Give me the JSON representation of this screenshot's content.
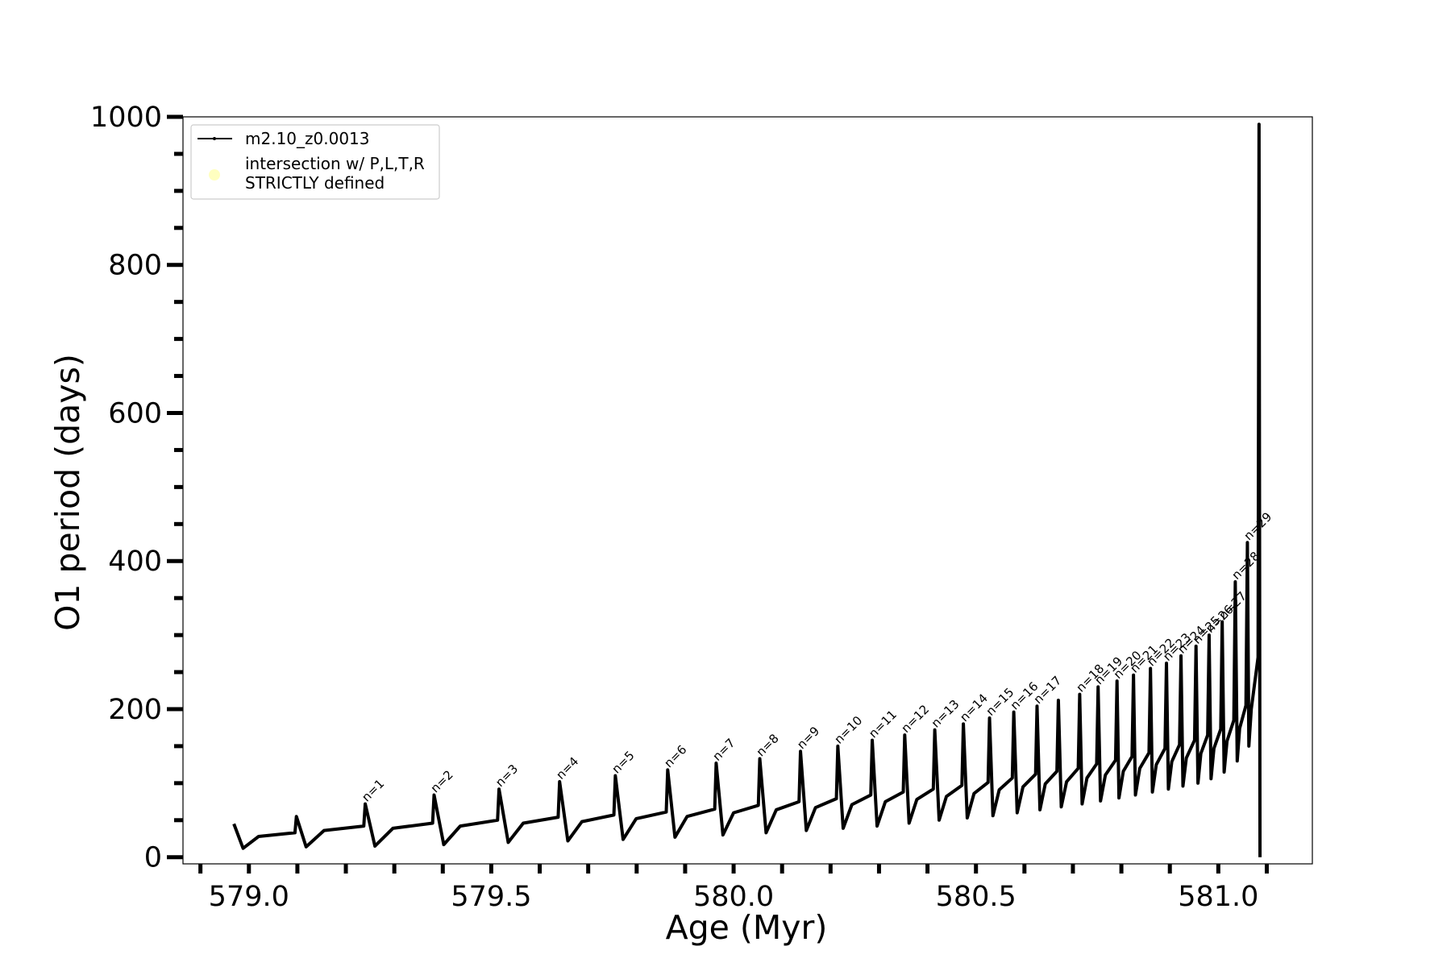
{
  "chart_data": {
    "type": "line",
    "xlabel": "Age (Myr)",
    "ylabel": "O1 period (days)",
    "xlim": [
      578.864,
      581.194
    ],
    "ylim": [
      -9,
      1000
    ],
    "xticks": [
      {
        "value": 579,
        "label": "579.0"
      },
      {
        "value": 579.5,
        "label": "579.5"
      },
      {
        "value": 580,
        "label": "580.0"
      },
      {
        "value": 580.5,
        "label": "580.5"
      },
      {
        "value": 581,
        "label": "581.0"
      }
    ],
    "yticks": [
      0,
      200,
      400,
      600,
      800,
      1000
    ],
    "xminorticks": [
      578.9,
      579.1,
      579.2,
      579.3,
      579.4,
      579.6,
      579.7,
      579.8,
      579.9,
      580.1,
      580.2,
      580.3,
      580.4,
      580.6,
      580.7,
      580.8,
      580.9,
      581.1
    ],
    "yminorticks": [
      50,
      100,
      150,
      250,
      300,
      350,
      450,
      500,
      550,
      650,
      700,
      750,
      850,
      900,
      950
    ],
    "legend": "upper left",
    "series": [
      {
        "name": "m2.10_z0.0013",
        "color": "#000000",
        "x": [
          578.969,
          578.988,
          579.02,
          579.095,
          579.098,
          579.118,
          579.155,
          579.237,
          579.24,
          579.26,
          579.297,
          579.379,
          579.382,
          579.402,
          579.436,
          579.513,
          579.516,
          579.535,
          579.566,
          579.638,
          579.641,
          579.658,
          579.687,
          579.753,
          579.756,
          579.772,
          579.799,
          579.861,
          579.864,
          579.879,
          579.904,
          579.961,
          579.964,
          579.978,
          580.0,
          580.051,
          580.054,
          580.067,
          580.088,
          580.135,
          580.138,
          580.15,
          580.169,
          580.212,
          580.215,
          580.226,
          580.244,
          580.283,
          580.286,
          580.296,
          580.313,
          580.35,
          580.353,
          580.362,
          580.378,
          580.412,
          580.415,
          580.424,
          580.439,
          580.471,
          580.474,
          580.482,
          580.496,
          580.525,
          580.528,
          580.535,
          580.548,
          580.575,
          580.578,
          580.585,
          580.597,
          580.623,
          580.626,
          580.632,
          580.643,
          580.667,
          580.67,
          580.676,
          580.687,
          580.711,
          580.714,
          580.719,
          580.729,
          580.749,
          580.752,
          580.757,
          580.767,
          580.788,
          580.791,
          580.795,
          580.804,
          580.822,
          580.825,
          580.829,
          580.838,
          580.857,
          580.86,
          580.864,
          580.872,
          580.89,
          580.893,
          580.897,
          580.904,
          580.92,
          580.923,
          580.927,
          580.934,
          580.951,
          580.954,
          580.958,
          580.964,
          580.978,
          580.981,
          580.985,
          580.991,
          581.005,
          581.008,
          581.012,
          581.018,
          581.032,
          581.035,
          581.039,
          581.044,
          581.057,
          581.06,
          581.063,
          581.068,
          581.082,
          581.084,
          581.086
        ],
        "values": [
          45,
          12,
          28,
          33,
          55,
          14,
          36,
          42,
          72,
          15,
          39,
          46,
          84,
          17,
          42,
          50,
          92,
          20,
          46,
          54,
          102,
          22,
          48,
          57,
          110,
          24,
          52,
          61,
          118,
          27,
          55,
          65,
          127,
          30,
          60,
          70,
          133,
          33,
          64,
          75,
          143,
          36,
          67,
          79,
          150,
          39,
          71,
          84,
          158,
          42,
          75,
          88,
          165,
          46,
          78,
          92,
          172,
          50,
          82,
          97,
          180,
          53,
          86,
          101,
          188,
          56,
          91,
          107,
          196,
          60,
          95,
          112,
          204,
          64,
          99,
          116,
          212,
          68,
          102,
          120,
          220,
          72,
          107,
          126,
          230,
          76,
          111,
          131,
          238,
          80,
          116,
          136,
          246,
          84,
          120,
          141,
          255,
          88,
          125,
          147,
          262,
          92,
          129,
          152,
          272,
          96,
          134,
          158,
          285,
          100,
          140,
          165,
          300,
          106,
          147,
          173,
          318,
          115,
          157,
          185,
          372,
          130,
          174,
          205,
          425,
          150,
          200,
          270,
          990,
          0
        ]
      },
      {
        "name": "intersection w/ P,L,T,R\nSTRICTLY defined",
        "color": "#ffffc0",
        "x": [],
        "values": []
      }
    ],
    "annotations": [
      {
        "text": "n=1",
        "x": 579.24,
        "y": 72
      },
      {
        "text": "n=2",
        "x": 579.382,
        "y": 84
      },
      {
        "text": "n=3",
        "x": 579.516,
        "y": 92
      },
      {
        "text": "n=4",
        "x": 579.641,
        "y": 102
      },
      {
        "text": "n=5",
        "x": 579.756,
        "y": 110
      },
      {
        "text": "n=6",
        "x": 579.864,
        "y": 118
      },
      {
        "text": "n=7",
        "x": 579.964,
        "y": 127
      },
      {
        "text": "n=8",
        "x": 580.054,
        "y": 133
      },
      {
        "text": "n=9",
        "x": 580.138,
        "y": 143
      },
      {
        "text": "n=10",
        "x": 580.215,
        "y": 150
      },
      {
        "text": "n=11",
        "x": 580.286,
        "y": 158
      },
      {
        "text": "n=12",
        "x": 580.353,
        "y": 165
      },
      {
        "text": "n=13",
        "x": 580.415,
        "y": 172
      },
      {
        "text": "n=14",
        "x": 580.474,
        "y": 180
      },
      {
        "text": "n=15",
        "x": 580.528,
        "y": 188
      },
      {
        "text": "n=16",
        "x": 580.578,
        "y": 196
      },
      {
        "text": "n=17",
        "x": 580.626,
        "y": 204
      },
      {
        "text": "n=18",
        "x": 580.714,
        "y": 220
      },
      {
        "text": "n=19",
        "x": 580.752,
        "y": 230
      },
      {
        "text": "n=20",
        "x": 580.791,
        "y": 238
      },
      {
        "text": "n=21",
        "x": 580.825,
        "y": 246
      },
      {
        "text": "n=22",
        "x": 580.86,
        "y": 255
      },
      {
        "text": "n=23",
        "x": 580.893,
        "y": 262
      },
      {
        "text": "n=24",
        "x": 580.923,
        "y": 272
      },
      {
        "text": "n=25",
        "x": 580.954,
        "y": 285
      },
      {
        "text": "n=26",
        "x": 580.981,
        "y": 300
      },
      {
        "text": "n=27",
        "x": 581.008,
        "y": 318
      },
      {
        "text": "n=28",
        "x": 581.035,
        "y": 372
      },
      {
        "text": "n=29",
        "x": 581.06,
        "y": 425
      }
    ]
  }
}
